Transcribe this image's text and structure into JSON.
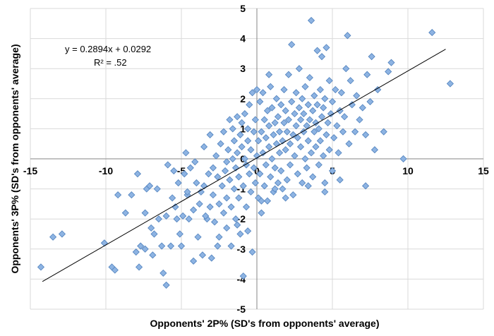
{
  "chart_data": {
    "type": "scatter",
    "title": "",
    "xlabel": "Opponents' 2P% (SD's from opponents' average)",
    "ylabel": "Opponents' 3P% (SD's from opponents' average)",
    "xlim": [
      -15,
      15
    ],
    "ylim": [
      -5,
      5
    ],
    "x_ticks": [
      -15,
      -10,
      -5,
      0,
      5,
      10,
      15
    ],
    "y_ticks": [
      -5,
      -4,
      -3,
      -2,
      -1,
      0,
      1,
      2,
      3,
      4,
      5
    ],
    "grid": "vertical and horizontal gridlines",
    "marker_color": "#8DB3E2",
    "marker_edge": "#4F81BD",
    "trendline": {
      "slope": 0.2894,
      "intercept": 0.0292,
      "x_range": [
        -14.2,
        12.5
      ],
      "equation": "y = 0.2894x + 0.0292",
      "r2": "R² = .52",
      "color": "#000000"
    },
    "points": [
      [
        -14.3,
        -3.6
      ],
      [
        -13.5,
        -2.6
      ],
      [
        -12.9,
        -2.5
      ],
      [
        -10.1,
        -2.8
      ],
      [
        -9.6,
        -3.6
      ],
      [
        -9.4,
        -3.7
      ],
      [
        -9.2,
        -1.2
      ],
      [
        -8.3,
        -1.2
      ],
      [
        -8.0,
        -3.1
      ],
      [
        -7.8,
        -3.6
      ],
      [
        -7.7,
        -2.9
      ],
      [
        -7.4,
        -3.0
      ],
      [
        -7.4,
        -1.8
      ],
      [
        -7.3,
        -1.0
      ],
      [
        -7.1,
        -0.9
      ],
      [
        -7.0,
        -2.3
      ],
      [
        -6.9,
        -3.2
      ],
      [
        -6.6,
        -1.0
      ],
      [
        -6.5,
        -2.0
      ],
      [
        -6.3,
        -2.9
      ],
      [
        -6.2,
        -3.8
      ],
      [
        -6.0,
        -1.9
      ],
      [
        -6.0,
        -4.2
      ],
      [
        -5.9,
        -0.2
      ],
      [
        -5.7,
        -2.9
      ],
      [
        -5.6,
        -1.3
      ],
      [
        -5.5,
        -0.4
      ],
      [
        -5.4,
        -1.6
      ],
      [
        -5.3,
        -2.0
      ],
      [
        -5.2,
        -0.8
      ],
      [
        -5.1,
        -2.5
      ],
      [
        -5.0,
        -2.9
      ],
      [
        -4.9,
        -1.9
      ],
      [
        -4.8,
        -0.5
      ],
      [
        -4.7,
        0.2
      ],
      [
        -4.6,
        -1.2
      ],
      [
        -4.5,
        -2.0
      ],
      [
        -4.4,
        -0.3
      ],
      [
        -4.2,
        -3.4
      ],
      [
        -4.2,
        -1.7
      ],
      [
        -4.1,
        -0.1
      ],
      [
        -4.0,
        -0.8
      ],
      [
        -3.9,
        -2.6
      ],
      [
        -3.8,
        -1.5
      ],
      [
        -3.7,
        -1.1
      ],
      [
        -3.6,
        -3.2
      ],
      [
        -3.5,
        0.4
      ],
      [
        -3.5,
        -0.9
      ],
      [
        -3.3,
        -2.0
      ],
      [
        -3.2,
        -0.5
      ],
      [
        -3.1,
        0.8
      ],
      [
        -3.1,
        -1.6
      ],
      [
        -3.0,
        -3.3
      ],
      [
        -2.9,
        -0.3
      ],
      [
        -2.9,
        -1.2
      ],
      [
        -2.8,
        -2.1
      ],
      [
        -2.7,
        0.1
      ],
      [
        -2.6,
        -0.6
      ],
      [
        -2.5,
        -1.5
      ],
      [
        -2.5,
        -2.6
      ],
      [
        -2.4,
        0.5
      ],
      [
        -2.3,
        -0.9
      ],
      [
        -2.2,
        -1.8
      ],
      [
        -2.2,
        0.9
      ],
      [
        -2.1,
        -0.4
      ],
      [
        -2.0,
        -1.3
      ],
      [
        -2.0,
        -2.3
      ],
      [
        -1.9,
        0.3
      ],
      [
        -1.8,
        -0.7
      ],
      [
        -1.8,
        1.3
      ],
      [
        -1.7,
        -1.6
      ],
      [
        -1.7,
        -2.9
      ],
      [
        -1.6,
        0.0
      ],
      [
        -1.6,
        1.0
      ],
      [
        -1.5,
        -1.0
      ],
      [
        -1.5,
        0.6
      ],
      [
        -1.4,
        -2.0
      ],
      [
        -1.4,
        -0.3
      ],
      [
        -1.3,
        1.4
      ],
      [
        -1.3,
        0.2
      ],
      [
        -1.2,
        -1.3
      ],
      [
        -1.2,
        -0.6
      ],
      [
        -1.1,
        0.8
      ],
      [
        -1.1,
        -2.5
      ],
      [
        -1.0,
        1.2
      ],
      [
        -1.0,
        0.4
      ],
      [
        -0.9,
        -0.9
      ],
      [
        -0.9,
        -3.9
      ],
      [
        -0.8,
        1.5
      ],
      [
        -0.8,
        0.0
      ],
      [
        -0.7,
        -0.2
      ],
      [
        -0.7,
        -1.6
      ],
      [
        -0.6,
        1.0
      ],
      [
        -0.6,
        0.6
      ],
      [
        -0.5,
        -0.5
      ],
      [
        -0.5,
        1.8
      ],
      [
        -0.4,
        -1.1
      ],
      [
        -0.4,
        0.3
      ],
      [
        -0.3,
        2.2
      ],
      [
        -0.3,
        -3.1
      ],
      [
        -0.2,
        0.9
      ],
      [
        -0.2,
        -0.3
      ],
      [
        -0.1,
        1.3
      ],
      [
        -0.1,
        -0.8
      ],
      [
        0.0,
        0.1
      ],
      [
        0.0,
        2.3
      ],
      [
        0.1,
        0.6
      ],
      [
        0.1,
        -1.3
      ],
      [
        0.2,
        1.9
      ],
      [
        0.2,
        -0.5
      ],
      [
        0.3,
        0.9
      ],
      [
        0.3,
        -1.8
      ],
      [
        0.4,
        2.2
      ],
      [
        0.4,
        0.2
      ],
      [
        0.5,
        1.3
      ],
      [
        0.5,
        -0.9
      ],
      [
        0.6,
        0.7
      ],
      [
        0.6,
        -0.2
      ],
      [
        0.7,
        1.6
      ],
      [
        0.7,
        -1.4
      ],
      [
        0.8,
        0.4
      ],
      [
        0.8,
        1.1
      ],
      [
        0.9,
        -0.6
      ],
      [
        0.9,
        2.4
      ],
      [
        1.0,
        0.0
      ],
      [
        1.0,
        1.7
      ],
      [
        1.1,
        -1.1
      ],
      [
        1.1,
        0.8
      ],
      [
        1.2,
        1.2
      ],
      [
        1.2,
        -0.3
      ],
      [
        1.3,
        0.5
      ],
      [
        1.3,
        2.0
      ],
      [
        1.4,
        -0.8
      ],
      [
        1.4,
        1.4
      ],
      [
        1.5,
        0.2
      ],
      [
        1.5,
        0.9
      ],
      [
        1.6,
        -0.4
      ],
      [
        1.6,
        1.8
      ],
      [
        1.7,
        0.6
      ],
      [
        1.7,
        -1.0
      ],
      [
        1.8,
        1.2
      ],
      [
        1.8,
        2.3
      ],
      [
        1.9,
        0.3
      ],
      [
        1.9,
        1.6
      ],
      [
        2.0,
        -0.7
      ],
      [
        2.0,
        0.9
      ],
      [
        2.1,
        2.8
      ],
      [
        2.1,
        1.3
      ],
      [
        2.2,
        -0.2
      ],
      [
        2.2,
        0.5
      ],
      [
        2.3,
        1.9
      ],
      [
        2.3,
        3.8
      ],
      [
        2.4,
        0.8
      ],
      [
        2.4,
        -1.2
      ],
      [
        2.5,
        1.5
      ],
      [
        2.5,
        0.1
      ],
      [
        2.6,
        2.2
      ],
      [
        2.6,
        1.1
      ],
      [
        2.7,
        -0.5
      ],
      [
        2.7,
        0.7
      ],
      [
        2.8,
        1.7
      ],
      [
        2.8,
        3.0
      ],
      [
        2.9,
        0.4
      ],
      [
        2.9,
        1.3
      ],
      [
        3.0,
        -0.8
      ],
      [
        3.0,
        2.0
      ],
      [
        3.1,
        0.9
      ],
      [
        3.1,
        1.5
      ],
      [
        3.2,
        0.0
      ],
      [
        3.2,
        2.4
      ],
      [
        3.3,
        1.1
      ],
      [
        3.3,
        -0.3
      ],
      [
        3.4,
        1.8
      ],
      [
        3.4,
        0.6
      ],
      [
        3.5,
        2.7
      ],
      [
        3.5,
        1.3
      ],
      [
        3.6,
        0.2
      ],
      [
        3.6,
        4.6
      ],
      [
        3.7,
        1.6
      ],
      [
        3.7,
        -0.6
      ],
      [
        3.8,
        0.9
      ],
      [
        3.8,
        2.1
      ],
      [
        3.9,
        1.2
      ],
      [
        3.9,
        0.4
      ],
      [
        4.0,
        3.6
      ],
      [
        4.0,
        1.8
      ],
      [
        4.1,
        -0.2
      ],
      [
        4.1,
        1.0
      ],
      [
        4.2,
        2.3
      ],
      [
        4.2,
        0.6
      ],
      [
        4.3,
        1.4
      ],
      [
        4.3,
        3.4
      ],
      [
        4.4,
        0.1
      ],
      [
        4.4,
        1.7
      ],
      [
        4.5,
        -0.8
      ],
      [
        4.5,
        2.0
      ],
      [
        4.6,
        0.8
      ],
      [
        4.6,
        3.7
      ],
      [
        4.7,
        1.2
      ],
      [
        4.8,
        0.3
      ],
      [
        4.8,
        2.6
      ],
      [
        4.9,
        1.5
      ],
      [
        5.0,
        -0.4
      ],
      [
        5.0,
        1.9
      ],
      [
        5.1,
        0.7
      ],
      [
        5.2,
        2.3
      ],
      [
        5.3,
        1.1
      ],
      [
        5.4,
        0.2
      ],
      [
        5.5,
        1.6
      ],
      [
        5.6,
        2.2
      ],
      [
        5.7,
        0.9
      ],
      [
        5.8,
        1.4
      ],
      [
        5.9,
        3.0
      ],
      [
        6.0,
        4.1
      ],
      [
        6.1,
        0.5
      ],
      [
        6.2,
        2.6
      ],
      [
        6.3,
        1.8
      ],
      [
        6.5,
        0.9
      ],
      [
        6.6,
        2.1
      ],
      [
        6.8,
        1.3
      ],
      [
        7.0,
        1.7
      ],
      [
        7.2,
        0.8
      ],
      [
        7.3,
        2.8
      ],
      [
        7.5,
        1.9
      ],
      [
        7.6,
        3.4
      ],
      [
        7.8,
        0.3
      ],
      [
        8.0,
        2.3
      ],
      [
        8.4,
        0.9
      ],
      [
        8.7,
        2.9
      ],
      [
        8.9,
        3.2
      ],
      [
        9.7,
        0.0
      ],
      [
        11.6,
        4.2
      ],
      [
        12.8,
        2.5
      ],
      [
        -3.4,
        -1.9
      ],
      [
        -2.6,
        -2.9
      ],
      [
        -1.3,
        -2.2
      ],
      [
        -0.6,
        -2.4
      ],
      [
        0.3,
        -1.4
      ],
      [
        1.2,
        -1.0
      ],
      [
        1.9,
        -1.3
      ],
      [
        3.4,
        -0.9
      ],
      [
        4.5,
        -1.1
      ],
      [
        5.5,
        -0.7
      ],
      [
        7.2,
        -0.9
      ],
      [
        -6.8,
        -2.5
      ],
      [
        -7.9,
        -0.5
      ],
      [
        -8.7,
        -1.8
      ],
      [
        -4.6,
        -1.1
      ],
      [
        -2.0,
        -0.1
      ],
      [
        0.8,
        2.8
      ]
    ]
  }
}
